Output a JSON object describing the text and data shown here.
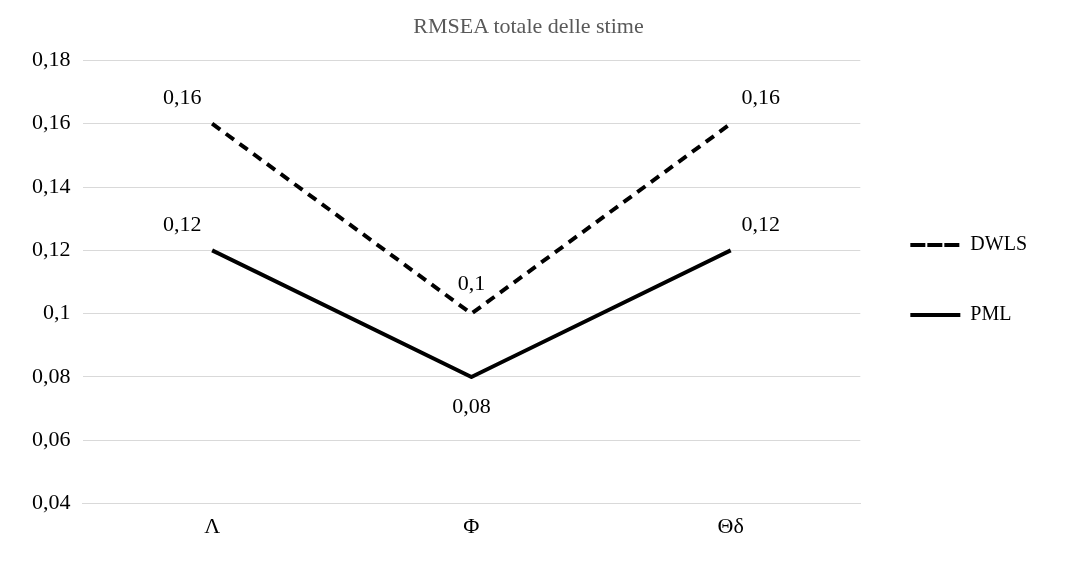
{
  "chart_data": {
    "type": "line",
    "title": "RMSEA totale delle stime",
    "categories": [
      "Λ",
      "Φ",
      "Θδ"
    ],
    "series": [
      {
        "name": "DWLS",
        "color": "#000000",
        "line_style": "dashed",
        "values": [
          0.16,
          0.1,
          0.16
        ],
        "value_labels": [
          "0,16",
          "0,1",
          "0,16"
        ]
      },
      {
        "name": "PML",
        "color": "#000000",
        "line_style": "solid",
        "values": [
          0.12,
          0.08,
          0.12
        ],
        "value_labels": [
          "0,12",
          "0,08",
          "0,12"
        ]
      }
    ],
    "ylim": [
      0.04,
      0.18
    ],
    "yticks": [
      {
        "value": 0.04,
        "label": "0,04"
      },
      {
        "value": 0.06,
        "label": "0,06"
      },
      {
        "value": 0.08,
        "label": "0,08"
      },
      {
        "value": 0.1,
        "label": "0,1"
      },
      {
        "value": 0.12,
        "label": "0,12"
      },
      {
        "value": 0.14,
        "label": "0,14"
      },
      {
        "value": 0.16,
        "label": "0,16"
      },
      {
        "value": 0.18,
        "label": "0,18"
      }
    ],
    "grid": "y",
    "legend": "right",
    "marker": "none"
  }
}
